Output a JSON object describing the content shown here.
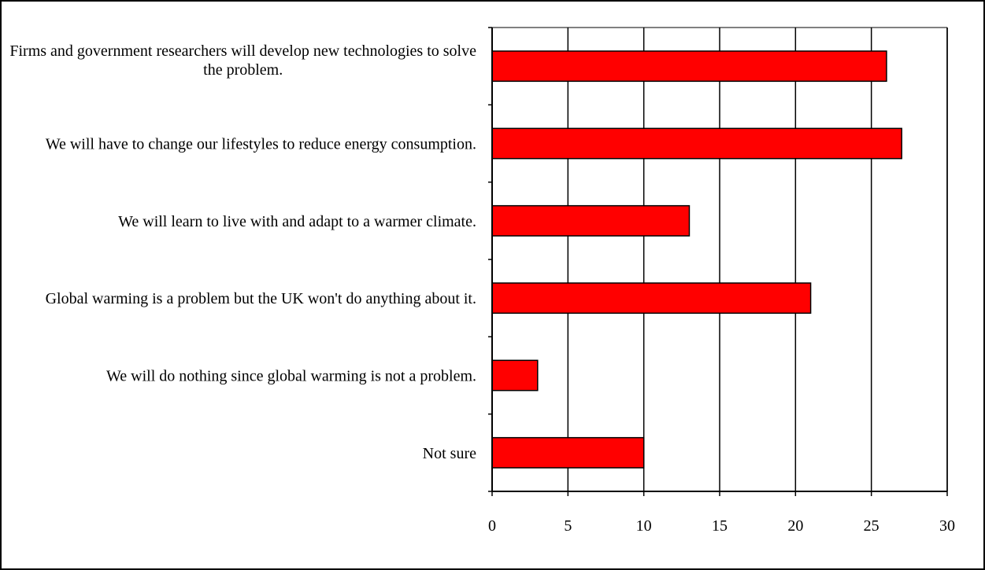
{
  "chart_data": {
    "type": "bar",
    "orientation": "horizontal",
    "categories": [
      "Firms and government researchers will develop new technologies to solve the problem.",
      "We will have to change our lifestyles to reduce energy consumption.",
      "We will learn to live with and adapt to a warmer climate.",
      "Global warming is a problem but the UK won't do anything about it.",
      "We will do nothing since global warming is not a problem.",
      "Not sure"
    ],
    "values": [
      26,
      27,
      13,
      21,
      3,
      10
    ],
    "color": "#ff0000",
    "xlim": [
      0,
      30
    ],
    "xticks": [
      0,
      5,
      10,
      15,
      20,
      25,
      30
    ],
    "grid": true
  }
}
